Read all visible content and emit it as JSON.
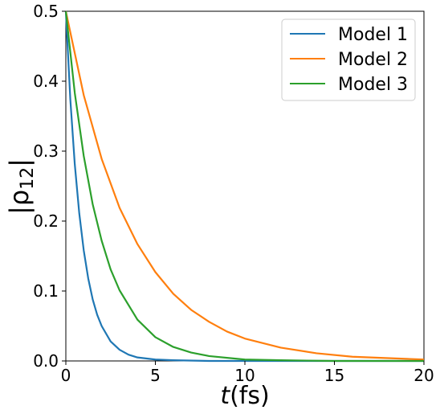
{
  "chart_data": {
    "type": "line",
    "xlim": [
      0,
      20
    ],
    "ylim": [
      0,
      0.5
    ],
    "x_ticks": [
      0,
      5,
      10,
      15,
      20
    ],
    "y_ticks": [
      0.0,
      0.1,
      0.2,
      0.3,
      0.4,
      0.5
    ],
    "x_tick_labels": [
      "0",
      "5",
      "10",
      "15",
      "20"
    ],
    "y_tick_labels": [
      "0.0",
      "0.1",
      "0.2",
      "0.3",
      "0.4",
      "0.5"
    ],
    "xlabel": {
      "var": "t",
      "unit": "(fs)"
    },
    "ylabel": {
      "open": "|ρ",
      "sub": "12",
      "close": "|"
    },
    "grid": false,
    "legend_position": "top-right",
    "series": [
      {
        "name": "Model 1",
        "color": "#1f77b4",
        "x": [
          0,
          0.25,
          0.5,
          0.75,
          1.0,
          1.25,
          1.5,
          1.75,
          2.0,
          2.5,
          3.0,
          3.5,
          4.0,
          5.0,
          6.0,
          8.0,
          10.0,
          15.0,
          20.0
        ],
        "y": [
          0.5,
          0.374,
          0.281,
          0.211,
          0.158,
          0.118,
          0.088,
          0.066,
          0.05,
          0.028,
          0.016,
          0.009,
          0.005,
          0.002,
          0.001,
          0.0,
          0.0,
          0.0,
          0.0
        ]
      },
      {
        "name": "Model 2",
        "color": "#ff7f0e",
        "x": [
          0,
          1,
          2,
          3,
          4,
          5,
          6,
          7,
          8,
          9,
          10,
          12,
          14,
          16,
          18,
          20
        ],
        "y": [
          0.5,
          0.38,
          0.289,
          0.219,
          0.167,
          0.127,
          0.096,
          0.073,
          0.056,
          0.042,
          0.032,
          0.019,
          0.011,
          0.006,
          0.004,
          0.002
        ]
      },
      {
        "name": "Model 3",
        "color": "#2ca02c",
        "x": [
          0,
          0.5,
          1.0,
          1.5,
          2.0,
          2.5,
          3.0,
          4.0,
          5.0,
          6.0,
          7.0,
          8.0,
          10.0,
          12.0,
          15.0,
          20.0
        ],
        "y": [
          0.5,
          0.383,
          0.293,
          0.224,
          0.172,
          0.131,
          0.101,
          0.059,
          0.034,
          0.02,
          0.012,
          0.007,
          0.002,
          0.001,
          0.0,
          0.0
        ]
      }
    ]
  }
}
